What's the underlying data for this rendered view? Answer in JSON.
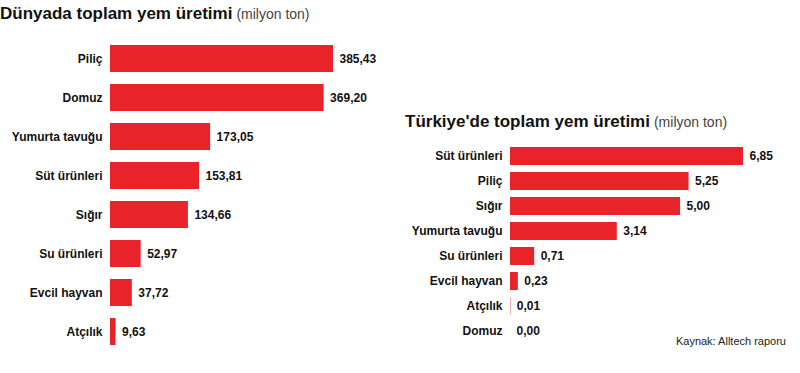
{
  "chart_data": [
    {
      "type": "bar",
      "orientation": "horizontal",
      "title": "Dünyada toplam yem üretimi",
      "subtitle": "(milyon ton)",
      "categories": [
        "Piliç",
        "Domuz",
        "Yumurta tavuğu",
        "Süt ürünleri",
        "Sığır",
        "Su ürünleri",
        "Evcil hayvan",
        "Atçılık"
      ],
      "values": [
        385.43,
        369.2,
        173.05,
        153.81,
        134.66,
        52.97,
        37.72,
        9.63
      ],
      "value_labels": [
        "385,43",
        "369,20",
        "173,05",
        "153,81",
        "134,66",
        "52,97",
        "37,72",
        "9,63"
      ],
      "color": "#e8232a",
      "xlim": [
        0,
        385.43
      ],
      "xticks": [],
      "data_labels": true,
      "tick_labels": "y",
      "grid": false
    },
    {
      "type": "bar",
      "orientation": "horizontal",
      "title": "Türkiye'de toplam yem üretimi",
      "subtitle": "(milyon ton)",
      "caption": "Kaynak: Alltech raporu",
      "categories": [
        "Süt ürünleri",
        "Piliç",
        "Sığır",
        "Yumurta tavuğu",
        "Su ürünleri",
        "Evcil hayvan",
        "Atçılık",
        "Domuz"
      ],
      "values": [
        6.85,
        5.25,
        5.0,
        3.14,
        0.71,
        0.23,
        0.01,
        0.0
      ],
      "value_labels": [
        "6,85",
        "5,25",
        "5,00",
        "3,14",
        "0,71",
        "0,23",
        "0,01",
        "0,00"
      ],
      "color": "#e8232a",
      "xlim": [
        0,
        6.85
      ],
      "xticks": [],
      "data_labels": true,
      "tick_labels": "y",
      "grid": false
    }
  ]
}
